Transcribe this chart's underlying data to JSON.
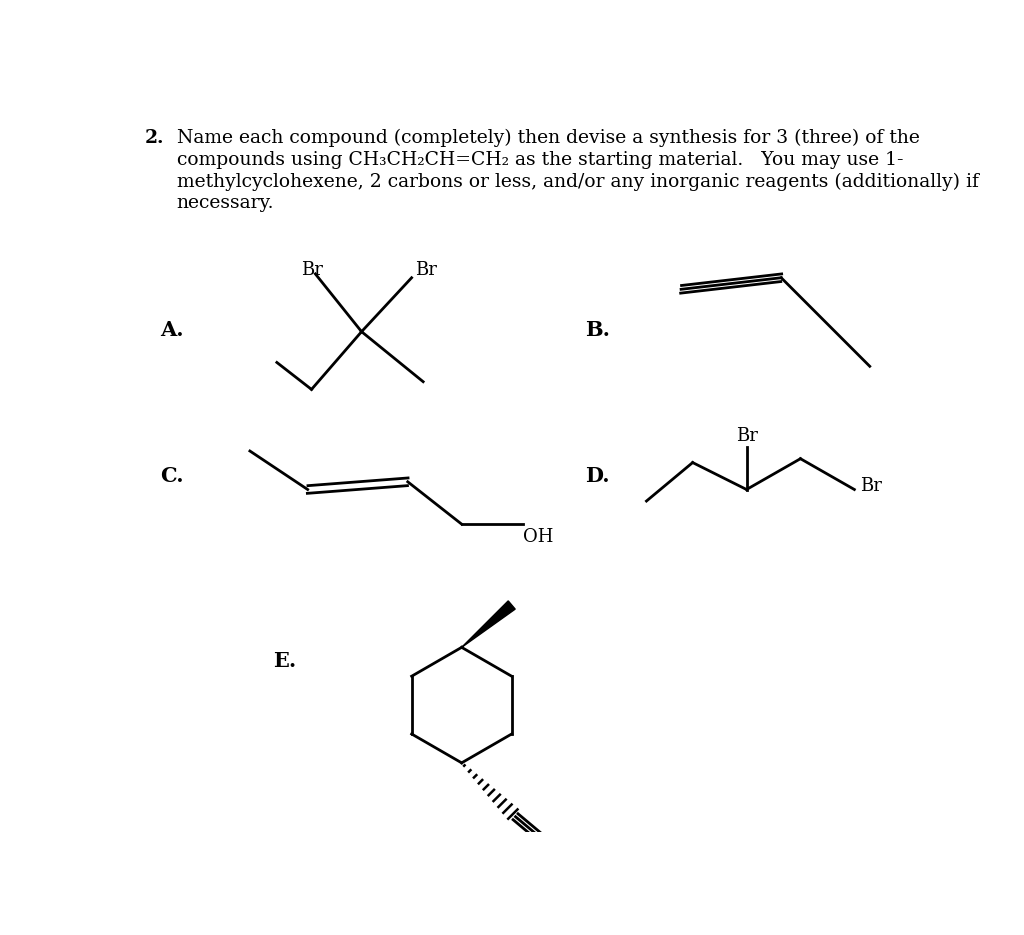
{
  "background_color": "#ffffff",
  "text_color": "#000000",
  "header_line1": "Name each compound (completely) then devise a synthesis for 3 (three) of the",
  "header_line2": "compounds using CH₃CH₂CH=CH₂ as the starting material.   You may use 1-",
  "header_line3": "methylcyclohexene, 2 carbons or less, and/or any inorganic reagents (additionally) if",
  "header_line4": "necessary.",
  "label_A": "A.",
  "label_B": "B.",
  "label_C": "C.",
  "label_D": "D.",
  "label_E": "E."
}
